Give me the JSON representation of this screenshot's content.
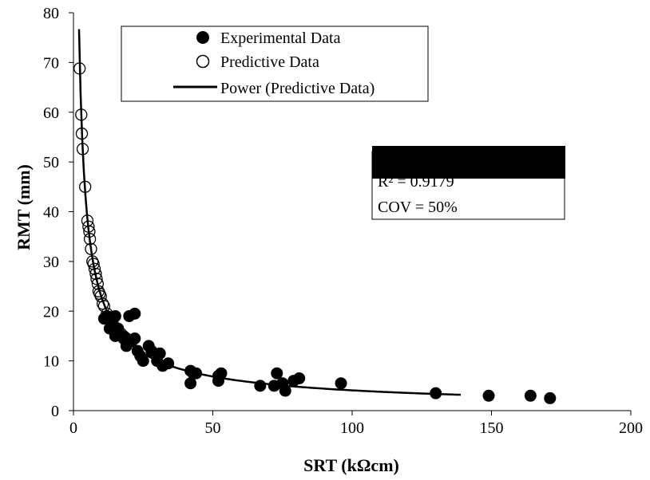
{
  "chart_data": {
    "type": "scatter",
    "xlabel": "SRT (kΩcm)",
    "ylabel": "RMT (mm)",
    "xlim": [
      0,
      200
    ],
    "ylim": [
      0,
      80
    ],
    "xticks": [
      "0",
      "50",
      "100",
      "150",
      "200"
    ],
    "yticks": [
      "0",
      "10",
      "20",
      "30",
      "40",
      "50",
      "60",
      "70",
      "80"
    ],
    "grid": false,
    "legend_position": "top-left",
    "series": [
      {
        "name": "Experimental Data",
        "marker": "filled-circle",
        "points": [
          [
            11,
            18.5
          ],
          [
            12,
            19.0
          ],
          [
            13,
            16.5
          ],
          [
            14,
            18.0
          ],
          [
            15,
            15.0
          ],
          [
            15,
            19.0
          ],
          [
            16,
            16.5
          ],
          [
            18,
            15.0
          ],
          [
            18,
            14.5
          ],
          [
            19,
            13.0
          ],
          [
            20,
            19.0
          ],
          [
            21,
            14.0
          ],
          [
            22,
            14.5
          ],
          [
            22,
            19.5
          ],
          [
            23,
            12.0
          ],
          [
            24,
            11.0
          ],
          [
            25,
            10.0
          ],
          [
            27,
            13.0
          ],
          [
            28,
            12.0
          ],
          [
            30,
            10.0
          ],
          [
            31,
            11.5
          ],
          [
            32,
            9.0
          ],
          [
            34,
            9.5
          ],
          [
            42,
            8.0
          ],
          [
            42,
            5.5
          ],
          [
            43,
            7.5
          ],
          [
            44,
            7.5
          ],
          [
            52,
            6.0
          ],
          [
            52,
            7.0
          ],
          [
            53,
            7.5
          ],
          [
            67,
            5.0
          ],
          [
            72,
            5.0
          ],
          [
            73,
            7.5
          ],
          [
            75,
            5.5
          ],
          [
            76,
            4.0
          ],
          [
            79,
            6.0
          ],
          [
            81,
            6.5
          ],
          [
            96,
            5.5
          ],
          [
            130,
            3.5
          ],
          [
            149,
            3.0
          ],
          [
            164,
            3.0
          ],
          [
            171,
            2.5
          ]
        ]
      },
      {
        "name": "Predictive Data",
        "marker": "open-circle",
        "points": [
          [
            2.2,
            68.8
          ],
          [
            2.8,
            59.5
          ],
          [
            3.0,
            55.7
          ],
          [
            3.3,
            52.6
          ],
          [
            4.2,
            45.0
          ],
          [
            5.0,
            38.2
          ],
          [
            5.4,
            37.0
          ],
          [
            5.7,
            36.0
          ],
          [
            5.9,
            34.5
          ],
          [
            6.3,
            32.5
          ],
          [
            6.8,
            30.0
          ],
          [
            7.2,
            29.5
          ],
          [
            7.6,
            28.5
          ],
          [
            8.0,
            27.5
          ],
          [
            8.3,
            26.5
          ],
          [
            8.7,
            25.5
          ],
          [
            9.0,
            24.0
          ],
          [
            9.4,
            23.5
          ],
          [
            9.8,
            23.0
          ],
          [
            10.5,
            21.5
          ],
          [
            11.0,
            21.0
          ],
          [
            12.0,
            19.5
          ],
          [
            13.0,
            18.8
          ],
          [
            14.0,
            17.5
          ],
          [
            15.5,
            16.5
          ],
          [
            17.0,
            15.5
          ],
          [
            19.0,
            14.5
          ]
        ]
      },
      {
        "name": "Power (Predictive Data)",
        "type": "line",
        "fit": "power",
        "x_range": [
          2.0,
          139.0
        ],
        "coefficient": 129.0,
        "exponent": -0.75
      }
    ],
    "annotation": {
      "lines": [
        "R² = 0.9179",
        "COV = 50%"
      ],
      "redaction_color": "#000000"
    }
  }
}
